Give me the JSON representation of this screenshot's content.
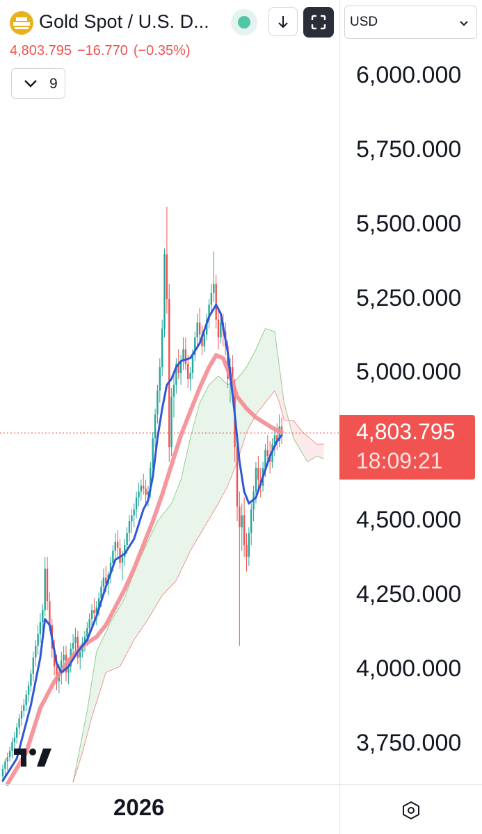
{
  "header": {
    "symbol_title": "Gold Spot / U.S. D...",
    "last_price": "4,803.795",
    "change": "−16.770",
    "change_pct": "(−0.35%)",
    "indicator_count": "9",
    "status_color": "#4fc7a5"
  },
  "currency": {
    "label": "USD"
  },
  "price_tag": {
    "price": "4,803.795",
    "countdown": "18:09:21",
    "color": "#f05350"
  },
  "footer": {
    "year_label": "2026"
  },
  "icons": {
    "logo": "gold-bars-icon",
    "download": "arrow-down-icon",
    "fullscreen": "fullscreen-icon",
    "collapse": "chevron-down-icon",
    "select": "chevron-down-icon",
    "settings": "hexagon-settings-icon",
    "brand": "tradingview-logo"
  },
  "chart_data": {
    "type": "candlestick",
    "y_ticks": [
      "6,000.000",
      "5,750.000",
      "5,500.000",
      "5,250.000",
      "5,000.000",
      "4,500.000",
      "4,250.000",
      "4,000.000",
      "3,750.000"
    ],
    "y_tick_values": [
      6000,
      5750,
      5500,
      5250,
      5000,
      4500,
      4250,
      4000,
      3750
    ],
    "ylim": [
      3610,
      6110
    ],
    "last_value": 4803.795,
    "x_label": "2026",
    "colors": {
      "up": "#26a69a",
      "down": "#ef5350",
      "fast_ma": "#2e56d6",
      "slow_ma": "#f48c93",
      "cloud_bull": "#4caf50",
      "cloud_bear": "#ef5350"
    },
    "candles": [
      [
        3640,
        3680,
        3620,
        3665
      ],
      [
        3665,
        3700,
        3645,
        3690
      ],
      [
        3690,
        3720,
        3660,
        3705
      ],
      [
        3705,
        3740,
        3690,
        3725
      ],
      [
        3725,
        3770,
        3700,
        3755
      ],
      [
        3755,
        3790,
        3730,
        3770
      ],
      [
        3770,
        3820,
        3750,
        3805
      ],
      [
        3805,
        3850,
        3780,
        3835
      ],
      [
        3835,
        3880,
        3810,
        3860
      ],
      [
        3860,
        3900,
        3840,
        3880
      ],
      [
        3880,
        3930,
        3860,
        3915
      ],
      [
        3915,
        3960,
        3890,
        3945
      ],
      [
        3945,
        4000,
        3925,
        3985
      ],
      [
        3985,
        4060,
        3960,
        4040
      ],
      [
        4040,
        4100,
        4010,
        4080
      ],
      [
        4080,
        4150,
        4050,
        4120
      ],
      [
        4120,
        4190,
        4090,
        4160
      ],
      [
        4160,
        4220,
        4130,
        4200
      ],
      [
        4200,
        4380,
        4180,
        4340
      ],
      [
        4340,
        4380,
        4200,
        4230
      ],
      [
        4230,
        4260,
        4130,
        4150
      ],
      [
        4150,
        4170,
        4040,
        4070
      ],
      [
        4070,
        4100,
        3980,
        4010
      ],
      [
        4010,
        4050,
        3930,
        3960
      ],
      [
        3960,
        4020,
        3920,
        3990
      ],
      [
        3990,
        4060,
        3950,
        4030
      ],
      [
        4030,
        4080,
        3990,
        4050
      ],
      [
        4050,
        4080,
        3960,
        3990
      ],
      [
        3990,
        4030,
        3950,
        4010
      ],
      [
        4010,
        4090,
        3990,
        4070
      ],
      [
        4070,
        4120,
        4030,
        4090
      ],
      [
        4090,
        4140,
        4050,
        4110
      ],
      [
        4110,
        4130,
        4020,
        4040
      ],
      [
        4040,
        4080,
        4000,
        4060
      ],
      [
        4060,
        4110,
        4040,
        4090
      ],
      [
        4090,
        4130,
        4060,
        4110
      ],
      [
        4110,
        4160,
        4080,
        4140
      ],
      [
        4140,
        4190,
        4110,
        4170
      ],
      [
        4170,
        4220,
        4140,
        4200
      ],
      [
        4200,
        4240,
        4170,
        4190
      ],
      [
        4190,
        4230,
        4150,
        4210
      ],
      [
        4210,
        4260,
        4180,
        4240
      ],
      [
        4240,
        4300,
        4210,
        4280
      ],
      [
        4280,
        4340,
        4250,
        4310
      ],
      [
        4310,
        4350,
        4260,
        4290
      ],
      [
        4290,
        4330,
        4250,
        4320
      ],
      [
        4320,
        4380,
        4290,
        4360
      ],
      [
        4360,
        4420,
        4330,
        4400
      ],
      [
        4400,
        4460,
        4370,
        4430
      ],
      [
        4430,
        4470,
        4380,
        4410
      ],
      [
        4410,
        4440,
        4340,
        4360
      ],
      [
        4360,
        4400,
        4300,
        4380
      ],
      [
        4380,
        4440,
        4350,
        4420
      ],
      [
        4420,
        4480,
        4390,
        4460
      ],
      [
        4460,
        4520,
        4430,
        4500
      ],
      [
        4500,
        4540,
        4460,
        4520
      ],
      [
        4520,
        4560,
        4480,
        4540
      ],
      [
        4540,
        4600,
        4510,
        4580
      ],
      [
        4580,
        4630,
        4550,
        4600
      ],
      [
        4600,
        4640,
        4570,
        4620
      ],
      [
        4620,
        4660,
        4590,
        4610
      ],
      [
        4610,
        4640,
        4560,
        4590
      ],
      [
        4590,
        4620,
        4550,
        4600
      ],
      [
        4600,
        4700,
        4580,
        4680
      ],
      [
        4680,
        4800,
        4660,
        4780
      ],
      [
        4780,
        4880,
        4750,
        4860
      ],
      [
        4860,
        4960,
        4830,
        4940
      ],
      [
        4940,
        5050,
        4900,
        5020
      ],
      [
        5020,
        5180,
        4990,
        5150
      ],
      [
        5150,
        5420,
        5120,
        5400
      ],
      [
        5400,
        5560,
        5200,
        5250
      ],
      [
        5250,
        5300,
        4700,
        4750
      ],
      [
        4750,
        4950,
        4720,
        4920
      ],
      [
        4920,
        5000,
        4850,
        4960
      ],
      [
        4960,
        5050,
        4930,
        5030
      ],
      [
        5030,
        5080,
        4980,
        5000
      ],
      [
        5000,
        5060,
        4960,
        5040
      ],
      [
        5040,
        5120,
        5010,
        5080
      ],
      [
        5080,
        5120,
        5010,
        5030
      ],
      [
        5030,
        5060,
        4950,
        4980
      ],
      [
        4980,
        5020,
        4940,
        5000
      ],
      [
        5000,
        5080,
        4980,
        5060
      ],
      [
        5060,
        5140,
        5040,
        5120
      ],
      [
        5120,
        5200,
        5080,
        5170
      ],
      [
        5170,
        5220,
        5100,
        5130
      ],
      [
        5130,
        5160,
        5060,
        5090
      ],
      [
        5090,
        5150,
        5070,
        5130
      ],
      [
        5130,
        5200,
        5110,
        5180
      ],
      [
        5180,
        5250,
        5150,
        5230
      ],
      [
        5230,
        5300,
        5200,
        5270
      ],
      [
        5270,
        5410,
        5240,
        5300
      ],
      [
        5300,
        5330,
        5150,
        5180
      ],
      [
        5180,
        5220,
        5080,
        5120
      ],
      [
        5120,
        5190,
        5100,
        5170
      ],
      [
        5170,
        5200,
        5090,
        5140
      ],
      [
        5140,
        5170,
        5060,
        5090
      ],
      [
        5090,
        5110,
        4950,
        4980
      ],
      [
        4980,
        5050,
        4900,
        5020
      ],
      [
        5020,
        5060,
        4940,
        4960
      ],
      [
        4960,
        4980,
        4700,
        4750
      ],
      [
        4750,
        4800,
        4500,
        4550
      ],
      [
        4550,
        4600,
        4080,
        4480
      ],
      [
        4480,
        4560,
        4400,
        4520
      ],
      [
        4520,
        4580,
        4380,
        4420
      ],
      [
        4420,
        4460,
        4330,
        4380
      ],
      [
        4380,
        4480,
        4350,
        4460
      ],
      [
        4460,
        4560,
        4420,
        4540
      ],
      [
        4540,
        4620,
        4500,
        4600
      ],
      [
        4600,
        4700,
        4560,
        4680
      ],
      [
        4680,
        4720,
        4600,
        4640
      ],
      [
        4640,
        4680,
        4580,
        4620
      ],
      [
        4620,
        4700,
        4600,
        4680
      ],
      [
        4680,
        4760,
        4650,
        4740
      ],
      [
        4740,
        4790,
        4690,
        4720
      ],
      [
        4720,
        4770,
        4660,
        4700
      ],
      [
        4700,
        4780,
        4680,
        4760
      ],
      [
        4760,
        4820,
        4720,
        4790
      ],
      [
        4790,
        4830,
        4740,
        4770
      ],
      [
        4770,
        4860,
        4750,
        4820
      ],
      [
        4820,
        4850,
        4760,
        4804
      ]
    ],
    "fast_ma": [
      [
        0,
        3625
      ],
      [
        6,
        3700
      ],
      [
        12,
        3880
      ],
      [
        16,
        4040
      ],
      [
        18,
        4170
      ],
      [
        20,
        4150
      ],
      [
        23,
        4020
      ],
      [
        25,
        3990
      ],
      [
        28,
        4010
      ],
      [
        32,
        4060
      ],
      [
        36,
        4100
      ],
      [
        40,
        4180
      ],
      [
        44,
        4280
      ],
      [
        48,
        4370
      ],
      [
        52,
        4390
      ],
      [
        56,
        4440
      ],
      [
        60,
        4540
      ],
      [
        62,
        4570
      ],
      [
        64,
        4650
      ],
      [
        66,
        4780
      ],
      [
        68,
        4880
      ],
      [
        70,
        4960
      ],
      [
        72,
        4980
      ],
      [
        74,
        5020
      ],
      [
        76,
        5040
      ],
      [
        80,
        5050
      ],
      [
        84,
        5100
      ],
      [
        88,
        5190
      ],
      [
        91,
        5230
      ],
      [
        93,
        5200
      ],
      [
        96,
        5070
      ],
      [
        99,
        4860
      ],
      [
        101,
        4700
      ],
      [
        103,
        4600
      ],
      [
        105,
        4560
      ],
      [
        108,
        4580
      ],
      [
        111,
        4650
      ],
      [
        114,
        4720
      ],
      [
        117,
        4770
      ],
      [
        119,
        4790
      ]
    ],
    "slow_ma": [
      [
        2,
        3600
      ],
      [
        10,
        3720
      ],
      [
        16,
        3870
      ],
      [
        22,
        3960
      ],
      [
        28,
        4030
      ],
      [
        34,
        4080
      ],
      [
        40,
        4110
      ],
      [
        44,
        4150
      ],
      [
        48,
        4210
      ],
      [
        52,
        4270
      ],
      [
        56,
        4340
      ],
      [
        60,
        4420
      ],
      [
        64,
        4500
      ],
      [
        68,
        4590
      ],
      [
        72,
        4690
      ],
      [
        76,
        4790
      ],
      [
        80,
        4870
      ],
      [
        84,
        4950
      ],
      [
        88,
        5020
      ],
      [
        91,
        5060
      ],
      [
        94,
        5050
      ],
      [
        97,
        4990
      ],
      [
        100,
        4920
      ],
      [
        104,
        4880
      ],
      [
        108,
        4850
      ],
      [
        112,
        4830
      ],
      [
        116,
        4810
      ],
      [
        119,
        4800
      ]
    ],
    "cloud_upper": [
      [
        30,
        3620
      ],
      [
        36,
        3860
      ],
      [
        40,
        4060
      ],
      [
        46,
        4160
      ],
      [
        52,
        4240
      ],
      [
        56,
        4330
      ],
      [
        60,
        4400
      ],
      [
        66,
        4500
      ],
      [
        72,
        4560
      ],
      [
        76,
        4640
      ],
      [
        80,
        4780
      ],
      [
        84,
        4900
      ],
      [
        88,
        4960
      ],
      [
        92,
        4990
      ],
      [
        96,
        4960
      ],
      [
        100,
        4980
      ],
      [
        104,
        5020
      ],
      [
        108,
        5080
      ],
      [
        112,
        5150
      ],
      [
        116,
        5140
      ],
      [
        118,
        5020
      ],
      [
        120,
        4900
      ],
      [
        124,
        4780
      ],
      [
        130,
        4700
      ],
      [
        134,
        4720
      ],
      [
        137,
        4710
      ]
    ],
    "cloud_lower": [
      [
        30,
        3620
      ],
      [
        34,
        3720
      ],
      [
        38,
        3840
      ],
      [
        44,
        3990
      ],
      [
        50,
        4010
      ],
      [
        56,
        4100
      ],
      [
        62,
        4170
      ],
      [
        68,
        4250
      ],
      [
        74,
        4300
      ],
      [
        80,
        4400
      ],
      [
        86,
        4480
      ],
      [
        92,
        4560
      ],
      [
        96,
        4620
      ],
      [
        100,
        4700
      ],
      [
        104,
        4800
      ],
      [
        108,
        4860
      ],
      [
        112,
        4900
      ],
      [
        116,
        4940
      ],
      [
        118,
        4900
      ],
      [
        120,
        4840
      ],
      [
        124,
        4840
      ],
      [
        128,
        4800
      ],
      [
        134,
        4760
      ],
      [
        137,
        4760
      ]
    ]
  }
}
